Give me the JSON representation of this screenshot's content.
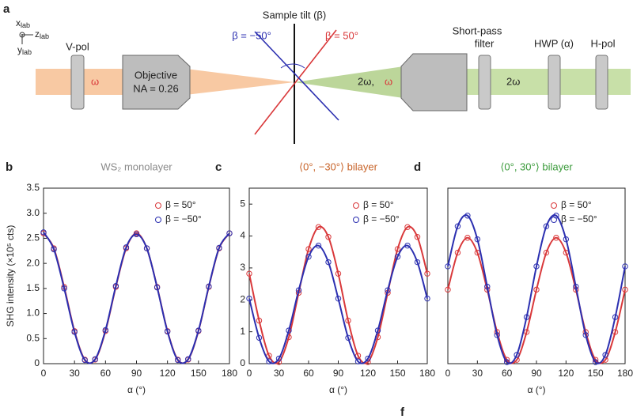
{
  "schematic": {
    "panel": "a",
    "axes": [
      {
        "symbol": "x",
        "sub": "lab"
      },
      {
        "symbol": "z",
        "sub": "lab"
      },
      {
        "symbol": "y",
        "sub": "lab"
      }
    ],
    "vpol": "V-pol",
    "omega_in": "ω",
    "objective": "Objective",
    "na": "NA = 0.26",
    "tilt": "Sample tilt (β)",
    "beta_neg": "β = −50°",
    "beta_pos": "β = 50°",
    "two_omega_mix": "2ω,",
    "omega_mix": "ω",
    "filter_1": "Short-pass",
    "filter_2": "filter",
    "hwp": "HWP (α)",
    "hpol": "H-pol",
    "two_omega_out": "2ω",
    "panel_f": "f"
  },
  "chart_data": [
    {
      "type": "line",
      "panel": "b",
      "title": "WS₂ monolayer",
      "title_color": "#8a8a8a",
      "x_label": "α (°)",
      "y_label": "SHG intensity (×10⁵ cts)",
      "x": [
        0,
        10,
        20,
        30,
        40,
        50,
        60,
        70,
        80,
        90,
        100,
        110,
        120,
        130,
        140,
        150,
        160,
        170,
        180
      ],
      "series": [
        {
          "name": "β = 50°",
          "color": "#d9383a",
          "values": [
            2.6,
            2.3,
            1.53,
            0.65,
            0.08,
            0.08,
            0.65,
            1.53,
            2.3,
            2.6,
            2.3,
            1.53,
            0.65,
            0.08,
            0.08,
            0.65,
            1.53,
            2.3,
            2.6
          ]
        },
        {
          "name": "β = −50°",
          "color": "#2b2fb0",
          "values": [
            2.62,
            2.28,
            1.5,
            0.63,
            0.07,
            0.09,
            0.67,
            1.55,
            2.32,
            2.58,
            2.3,
            1.52,
            0.64,
            0.07,
            0.09,
            0.66,
            1.54,
            2.31,
            2.6
          ]
        }
      ],
      "xlim": [
        0,
        180
      ],
      "xticks": [
        0,
        30,
        60,
        90,
        120,
        150,
        180
      ],
      "ylim": [
        0,
        3.5
      ],
      "yticks": [
        0,
        0.5,
        {
          "value": 1,
          "label": "1.0"
        },
        1.5,
        {
          "value": 2,
          "label": "2.0"
        },
        2.5,
        {
          "value": 3,
          "label": "3.0"
        },
        3.5
      ],
      "legend": "upper right"
    },
    {
      "type": "line",
      "panel": "c",
      "title": "⟨0°, −30°⟩ bilayer",
      "title_color": "#c8642a",
      "x_label": "α (°)",
      "x": [
        0,
        10,
        20,
        30,
        40,
        50,
        60,
        70,
        80,
        90,
        100,
        110,
        120,
        130,
        140,
        150,
        160,
        170,
        180
      ],
      "series": [
        {
          "name": "β = 50°",
          "color": "#d9383a",
          "values": [
            2.82,
            1.35,
            0.25,
            0.05,
            0.83,
            2.22,
            3.59,
            4.28,
            3.97,
            2.82,
            1.35,
            0.25,
            0.05,
            0.83,
            2.22,
            3.59,
            4.28,
            3.97,
            2.82
          ]
        },
        {
          "name": "β = −50°",
          "color": "#2b2fb0",
          "values": [
            2.04,
            0.81,
            0.07,
            0.16,
            1.04,
            2.3,
            3.35,
            3.7,
            3.18,
            2.04,
            0.81,
            0.07,
            0.16,
            1.04,
            2.3,
            3.35,
            3.7,
            3.18,
            2.04
          ]
        }
      ],
      "xlim": [
        0,
        180
      ],
      "xticks": [
        0,
        30,
        60,
        90,
        120,
        150,
        180
      ],
      "ylim": [
        0,
        5.5
      ],
      "yticks": [
        0,
        1,
        2,
        3,
        4,
        5
      ],
      "legend": "upper right"
    },
    {
      "type": "line",
      "panel": "d",
      "title": "⟨0°, 30°⟩ bilayer",
      "title_color": "#3a9a3a",
      "x_label": "α (°)",
      "x": [
        0,
        10,
        20,
        30,
        40,
        50,
        60,
        70,
        80,
        90,
        100,
        110,
        120,
        130,
        140,
        150,
        160,
        170,
        180
      ],
      "series": [
        {
          "name": "β = 50°",
          "color": "#d9383a",
          "values": [
            1.94,
            2.91,
            3.3,
            2.91,
            1.94,
            0.83,
            0.1,
            0.1,
            0.83,
            1.94,
            2.91,
            3.3,
            2.91,
            1.94,
            0.83,
            0.1,
            0.1,
            0.83,
            1.94
          ]
        },
        {
          "name": "β = −50°",
          "color": "#2b2fb0",
          "values": [
            2.55,
            3.6,
            3.88,
            3.26,
            2.02,
            0.75,
            0.04,
            0.23,
            1.22,
            2.55,
            3.6,
            3.88,
            3.26,
            2.02,
            0.75,
            0.04,
            0.23,
            1.22,
            2.55
          ]
        }
      ],
      "xlim": [
        0,
        180
      ],
      "xticks": [
        0,
        30,
        60,
        90,
        120,
        150,
        180
      ],
      "ylim": [
        0,
        4.6
      ],
      "legend": "upper right"
    }
  ]
}
